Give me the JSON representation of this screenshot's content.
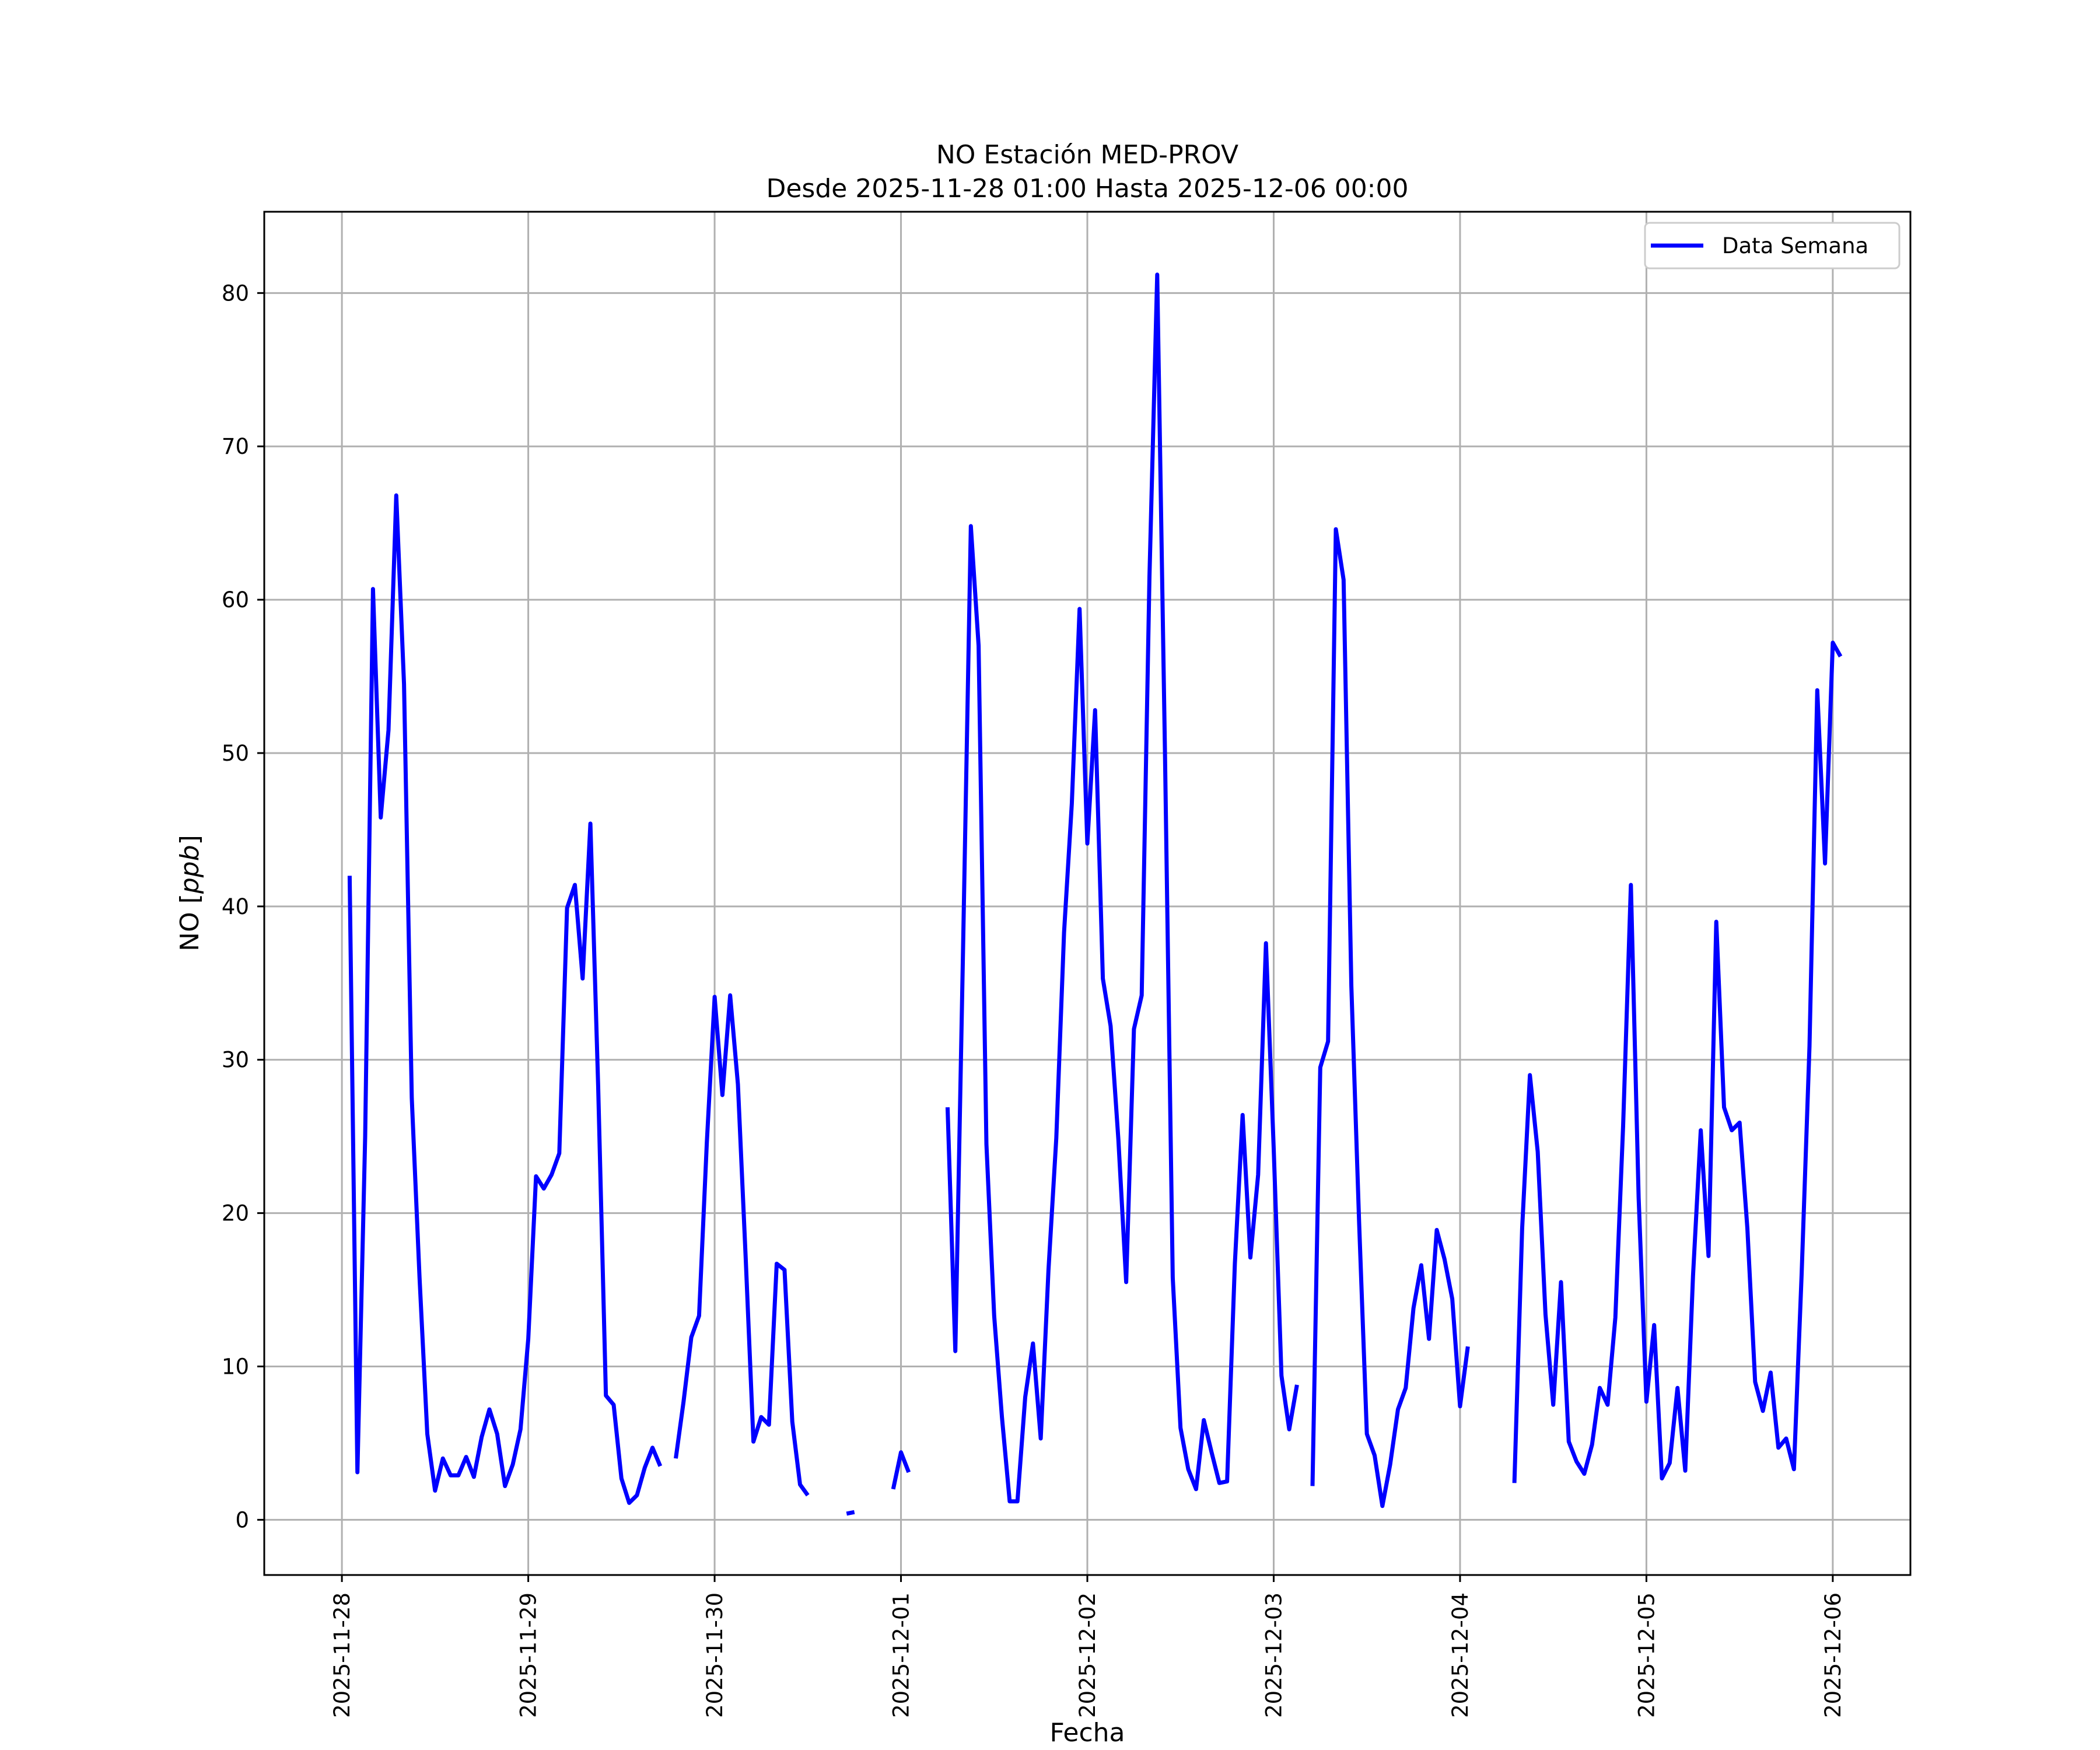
{
  "chart_data": {
    "type": "line",
    "title": "NO Estación MED-PROV",
    "subtitle": "Desde 2025-11-28 01:00 Hasta 2025-12-06 00:00",
    "xlabel": "Fecha",
    "ylabel_main": "NO [",
    "ylabel_unit": "ppb",
    "ylabel_close": "]",
    "x_tick_labels": [
      "2025-11-28",
      "2025-11-29",
      "2025-11-30",
      "2025-12-01",
      "2025-12-02",
      "2025-12-03",
      "2025-12-04",
      "2025-12-05",
      "2025-12-06"
    ],
    "y_ticks": [
      0,
      10,
      20,
      30,
      40,
      50,
      60,
      70,
      80
    ],
    "x_range": [
      "2025-11-27 14:00",
      "2025-12-06 10:00"
    ],
    "ylim": [
      -3.6,
      85.3
    ],
    "grid": true,
    "legend_placement": "top-right",
    "series": [
      {
        "name": "Data Semana",
        "color": "#0000ff",
        "start": "2025-11-28 01:00",
        "step_hours": 1,
        "values": [
          42,
          3.1,
          25,
          60.7,
          45.8,
          51.5,
          66.8,
          54.5,
          27.5,
          15.8,
          5.6,
          1.9,
          4,
          2.9,
          2.9,
          4.1,
          2.8,
          5.4,
          7.2,
          5.6,
          2.2,
          3.6,
          5.9,
          11.8,
          22.4,
          21.6,
          22.5,
          23.9,
          39.9,
          41.4,
          35.3,
          45.4,
          28.3,
          8.1,
          7.5,
          2.7,
          1.1,
          1.6,
          3.4,
          4.7,
          3.5,
          null,
          4,
          7.7,
          11.9,
          13.3,
          24.6,
          34.1,
          27.7,
          34.2,
          28.4,
          17.1,
          5.1,
          6.7,
          6.2,
          16.7,
          16.3,
          6.4,
          2.3,
          1.6,
          null,
          null,
          null,
          null,
          0.4,
          0.5,
          null,
          null,
          null,
          null,
          2,
          4.4,
          3.1,
          null,
          null,
          null,
          null,
          26.9,
          11,
          37.3,
          64.8,
          57,
          24.5,
          13.3,
          6.7,
          1.2,
          1.2,
          8,
          11.5,
          5.3,
          16.3,
          24.9,
          38.3,
          46.7,
          59.4,
          44.1,
          52.8,
          35.3,
          32.2,
          24.8,
          15.5,
          32,
          34.2,
          61.5,
          81.2,
          50,
          15.8,
          6,
          3.3,
          2,
          6.5,
          4.4,
          2.4,
          2.5,
          16.7,
          26.4,
          17.1,
          22.5,
          37.6,
          24.2,
          9.4,
          5.9,
          8.8,
          null,
          2.2,
          29.5,
          31.2,
          64.6,
          61.3,
          34.8,
          19.4,
          5.6,
          4.2,
          0.9,
          3.6,
          7.2,
          8.6,
          13.8,
          16.6,
          11.8,
          18.9,
          17,
          14.4,
          7.4,
          11.3,
          null,
          null,
          null,
          null,
          null,
          2.4,
          19,
          29,
          24,
          13.4,
          7.5,
          15.5,
          5.1,
          3.8,
          3,
          4.9,
          8.6,
          7.5,
          13.2,
          25.7,
          41.4,
          21,
          7.7,
          12.7,
          2.7,
          3.7,
          8.6,
          3.2,
          15.9,
          25.4,
          17.2,
          39,
          26.9,
          25.4,
          25.9,
          19,
          9,
          7.1,
          9.6,
          4.7,
          5.3,
          3.3,
          16.1,
          30.9,
          54.1,
          42.8,
          57.2,
          56.3
        ]
      }
    ]
  }
}
